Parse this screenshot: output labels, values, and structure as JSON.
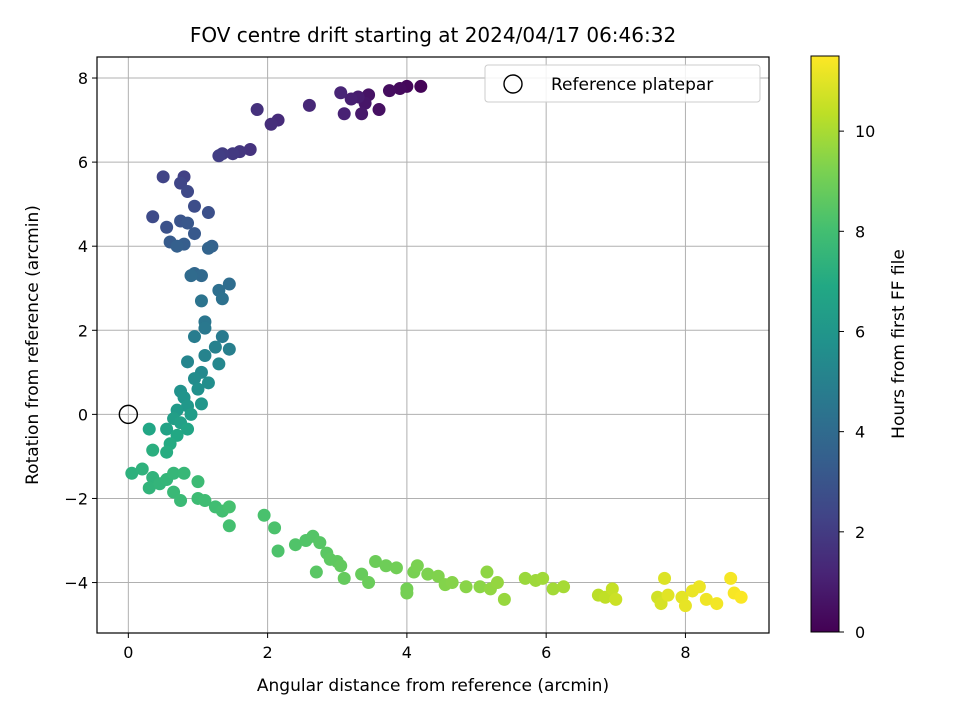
{
  "chart_data": {
    "type": "scatter",
    "title": "FOV centre drift starting at 2024/04/17 06:46:32",
    "xlabel": "Angular distance from reference (arcmin)",
    "ylabel": "Rotation from reference (arcmin)",
    "xlim": [
      -0.45,
      9.2
    ],
    "ylim": [
      -5.2,
      8.5
    ],
    "xticks": [
      0,
      2,
      4,
      6,
      8
    ],
    "yticks": [
      -4,
      -2,
      0,
      2,
      4,
      6,
      8
    ],
    "grid": true,
    "legend": {
      "position": "top-right",
      "entries": [
        "Reference platepar"
      ]
    },
    "reference_point": {
      "x": 0,
      "y": 0,
      "marker": "open-circle",
      "label": "Reference platepar"
    },
    "colorbar": {
      "label": "Hours from first FF file",
      "min": 0,
      "max": 11.5,
      "ticks": [
        0,
        2,
        4,
        6,
        8,
        10
      ],
      "colormap": "viridis"
    },
    "series": [
      {
        "color_by": "hours",
        "points": [
          [
            4.2,
            7.8,
            0.1
          ],
          [
            4.0,
            7.8,
            0.2
          ],
          [
            3.9,
            7.75,
            0.3
          ],
          [
            3.75,
            7.7,
            0.4
          ],
          [
            3.6,
            7.25,
            0.5
          ],
          [
            3.45,
            7.6,
            0.6
          ],
          [
            3.4,
            7.4,
            0.7
          ],
          [
            3.35,
            7.15,
            0.8
          ],
          [
            3.3,
            7.55,
            0.9
          ],
          [
            3.2,
            7.5,
            1.0
          ],
          [
            3.1,
            7.15,
            1.1
          ],
          [
            3.05,
            7.65,
            1.2
          ],
          [
            2.6,
            7.35,
            1.3
          ],
          [
            2.15,
            7.0,
            1.4
          ],
          [
            2.05,
            6.9,
            1.5
          ],
          [
            1.85,
            7.25,
            1.6
          ],
          [
            1.75,
            6.3,
            1.7
          ],
          [
            1.6,
            6.25,
            1.8
          ],
          [
            1.5,
            6.2,
            1.9
          ],
          [
            1.35,
            6.2,
            2.0
          ],
          [
            1.3,
            6.15,
            2.1
          ],
          [
            0.8,
            5.65,
            2.2
          ],
          [
            0.5,
            5.65,
            2.3
          ],
          [
            0.75,
            5.5,
            2.4
          ],
          [
            0.85,
            5.3,
            2.5
          ],
          [
            0.35,
            4.7,
            2.6
          ],
          [
            0.95,
            4.95,
            2.7
          ],
          [
            1.15,
            4.8,
            2.8
          ],
          [
            0.55,
            4.45,
            2.9
          ],
          [
            0.75,
            4.6,
            3.0
          ],
          [
            0.85,
            4.55,
            3.1
          ],
          [
            0.95,
            4.3,
            3.2
          ],
          [
            0.6,
            4.1,
            3.3
          ],
          [
            0.8,
            4.05,
            3.4
          ],
          [
            0.7,
            4.0,
            3.5
          ],
          [
            1.2,
            4.0,
            3.6
          ],
          [
            1.15,
            3.95,
            3.7
          ],
          [
            0.95,
            3.35,
            3.8
          ],
          [
            1.05,
            3.3,
            3.9
          ],
          [
            0.9,
            3.3,
            4.0
          ],
          [
            1.45,
            3.1,
            4.1
          ],
          [
            1.3,
            2.95,
            4.2
          ],
          [
            1.35,
            2.75,
            4.3
          ],
          [
            1.05,
            2.7,
            4.4
          ],
          [
            1.1,
            2.2,
            4.5
          ],
          [
            1.1,
            2.05,
            4.6
          ],
          [
            1.35,
            1.85,
            4.7
          ],
          [
            0.95,
            1.85,
            4.8
          ],
          [
            1.45,
            1.55,
            4.9
          ],
          [
            1.25,
            1.6,
            5.0
          ],
          [
            1.1,
            1.4,
            5.1
          ],
          [
            0.85,
            1.25,
            5.2
          ],
          [
            1.3,
            1.2,
            5.3
          ],
          [
            1.05,
            1.0,
            5.4
          ],
          [
            0.95,
            0.85,
            5.5
          ],
          [
            1.15,
            0.75,
            5.6
          ],
          [
            1.0,
            0.6,
            5.7
          ],
          [
            0.75,
            0.55,
            5.8
          ],
          [
            0.8,
            0.4,
            5.9
          ],
          [
            1.05,
            0.25,
            6.0
          ],
          [
            0.85,
            0.2,
            6.1
          ],
          [
            0.7,
            0.1,
            6.2
          ],
          [
            0.9,
            0.0,
            6.3
          ],
          [
            0.65,
            -0.1,
            6.4
          ],
          [
            0.75,
            -0.2,
            6.5
          ],
          [
            0.55,
            -0.35,
            6.6
          ],
          [
            0.85,
            -0.35,
            6.7
          ],
          [
            0.3,
            -0.35,
            6.8
          ],
          [
            0.7,
            -0.5,
            6.9
          ],
          [
            0.6,
            -0.7,
            7.0
          ],
          [
            0.55,
            -0.9,
            7.1
          ],
          [
            0.35,
            -0.85,
            7.2
          ],
          [
            0.05,
            -1.4,
            7.3
          ],
          [
            0.2,
            -1.3,
            7.35
          ],
          [
            0.35,
            -1.5,
            7.4
          ],
          [
            0.3,
            -1.75,
            7.45
          ],
          [
            0.45,
            -1.65,
            7.5
          ],
          [
            0.55,
            -1.55,
            7.55
          ],
          [
            0.65,
            -1.4,
            7.6
          ],
          [
            0.8,
            -1.4,
            7.65
          ],
          [
            0.65,
            -1.85,
            7.7
          ],
          [
            0.75,
            -2.05,
            7.75
          ],
          [
            1.0,
            -1.6,
            7.8
          ],
          [
            1.0,
            -2.0,
            7.85
          ],
          [
            1.1,
            -2.05,
            7.9
          ],
          [
            1.25,
            -2.2,
            7.95
          ],
          [
            1.35,
            -2.3,
            8.0
          ],
          [
            1.45,
            -2.65,
            8.05
          ],
          [
            1.45,
            -2.2,
            8.1
          ],
          [
            1.95,
            -2.4,
            8.15
          ],
          [
            2.1,
            -2.7,
            8.2
          ],
          [
            2.15,
            -3.25,
            8.25
          ],
          [
            2.4,
            -3.1,
            8.3
          ],
          [
            2.55,
            -3.0,
            8.35
          ],
          [
            2.65,
            -2.9,
            8.4
          ],
          [
            2.75,
            -3.05,
            8.45
          ],
          [
            2.7,
            -3.75,
            8.5
          ],
          [
            2.85,
            -3.3,
            8.55
          ],
          [
            2.9,
            -3.45,
            8.6
          ],
          [
            3.0,
            -3.5,
            8.65
          ],
          [
            3.05,
            -3.6,
            8.7
          ],
          [
            3.1,
            -3.9,
            8.75
          ],
          [
            3.35,
            -3.8,
            8.8
          ],
          [
            3.45,
            -4.0,
            8.85
          ],
          [
            3.55,
            -3.5,
            8.9
          ],
          [
            3.7,
            -3.6,
            8.95
          ],
          [
            3.85,
            -3.65,
            9.0
          ],
          [
            4.0,
            -4.15,
            9.05
          ],
          [
            4.0,
            -4.25,
            9.1
          ],
          [
            4.1,
            -3.75,
            9.15
          ],
          [
            4.15,
            -3.6,
            9.2
          ],
          [
            4.3,
            -3.8,
            9.25
          ],
          [
            4.45,
            -3.85,
            9.3
          ],
          [
            4.55,
            -4.05,
            9.35
          ],
          [
            4.65,
            -4.0,
            9.4
          ],
          [
            4.85,
            -4.1,
            9.45
          ],
          [
            5.05,
            -4.1,
            9.5
          ],
          [
            5.15,
            -3.75,
            9.55
          ],
          [
            5.2,
            -4.15,
            9.6
          ],
          [
            5.3,
            -4.0,
            9.65
          ],
          [
            5.4,
            -4.4,
            9.7
          ],
          [
            5.7,
            -3.9,
            9.75
          ],
          [
            5.85,
            -3.95,
            9.8
          ],
          [
            5.95,
            -3.9,
            9.85
          ],
          [
            6.1,
            -4.15,
            9.9
          ],
          [
            6.25,
            -4.1,
            9.95
          ],
          [
            6.75,
            -4.3,
            10.3
          ],
          [
            6.85,
            -4.35,
            10.4
          ],
          [
            6.95,
            -4.15,
            10.5
          ],
          [
            7.0,
            -4.4,
            10.6
          ],
          [
            7.6,
            -4.35,
            10.7
          ],
          [
            7.65,
            -4.5,
            10.8
          ],
          [
            7.7,
            -3.9,
            10.9
          ],
          [
            7.75,
            -4.3,
            11.0
          ],
          [
            7.95,
            -4.35,
            11.05
          ],
          [
            8.0,
            -4.55,
            11.1
          ],
          [
            8.1,
            -4.2,
            11.15
          ],
          [
            8.2,
            -4.1,
            11.2
          ],
          [
            8.3,
            -4.4,
            11.25
          ],
          [
            8.45,
            -4.5,
            11.3
          ],
          [
            8.65,
            -3.9,
            11.35
          ],
          [
            8.7,
            -4.25,
            11.4
          ],
          [
            8.8,
            -4.35,
            11.45
          ]
        ]
      }
    ]
  }
}
